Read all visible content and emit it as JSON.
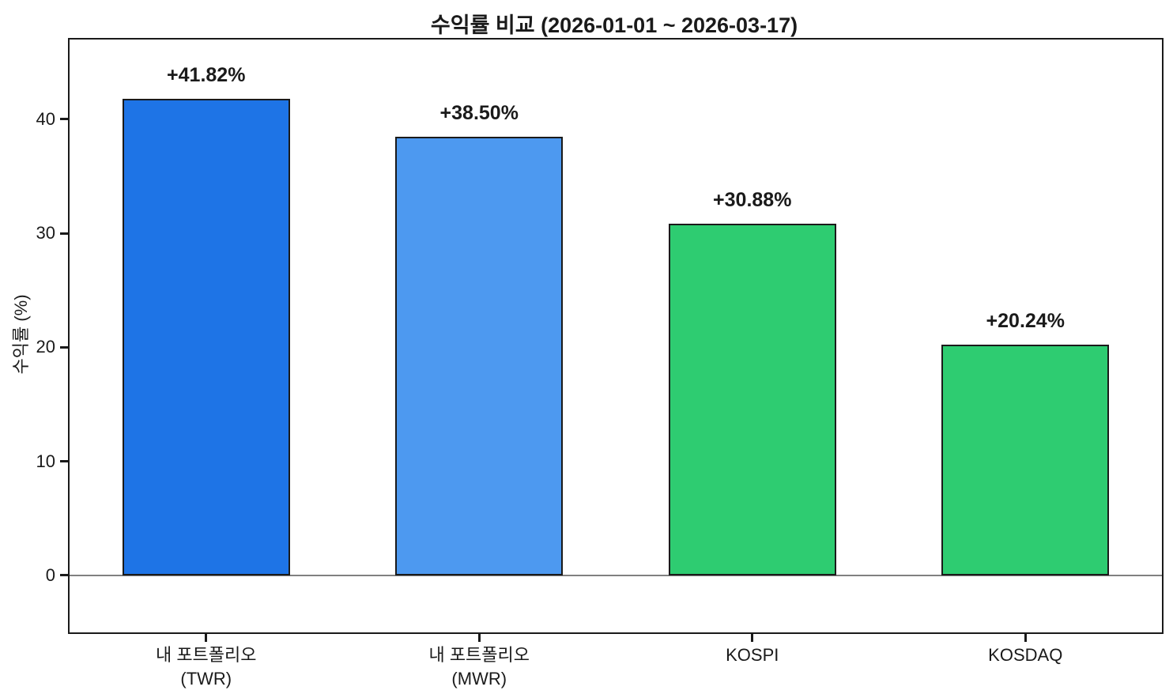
{
  "figure": {
    "background": "#ffffff"
  },
  "chart_data": {
    "type": "bar",
    "title": "수익률 비교 (2026-01-01 ~ 2026-03-17)",
    "xlabel": "",
    "ylabel": "수익률 (%)",
    "categories": [
      "내 포트폴리오\n(TWR)",
      "내 포트폴리오\n(MWR)",
      "KOSPI",
      "KOSDAQ"
    ],
    "values": [
      41.82,
      38.5,
      30.88,
      20.24
    ],
    "bar_labels": [
      "+41.82%",
      "+38.50%",
      "+30.88%",
      "+20.24%"
    ],
    "bar_colors": [
      "#1E74E6",
      "#4D99F0",
      "#2ECC71",
      "#2ECC71"
    ],
    "bar_edge_color": "#1a1a1a",
    "yticks": [
      0,
      10,
      20,
      30,
      40
    ],
    "ylim": [
      -5,
      47
    ],
    "bar_width_frac": 0.615,
    "zero_line": {
      "show": true,
      "color": "#808080"
    },
    "grid": false,
    "legend": null
  }
}
